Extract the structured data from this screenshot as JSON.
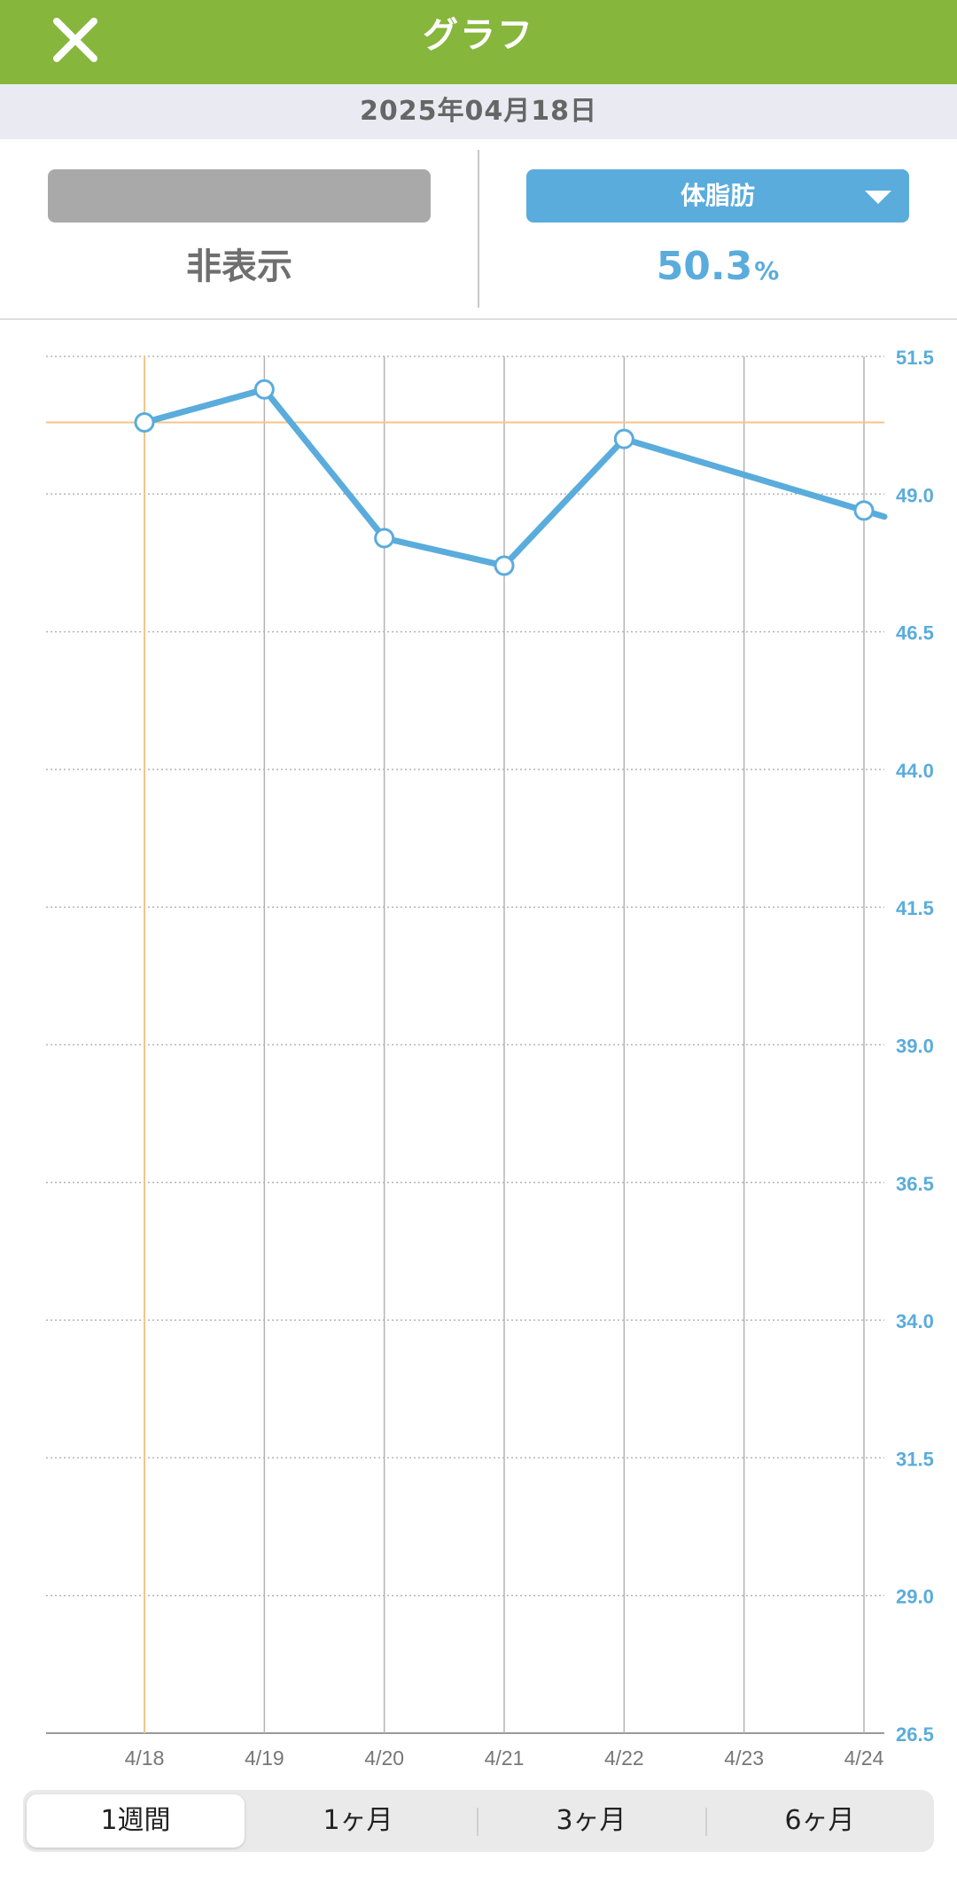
{
  "header": {
    "title": "グラフ",
    "close_icon": "close-icon"
  },
  "date_bar": {
    "text": "2025年04月18日"
  },
  "selectors": {
    "left": {
      "label": "",
      "value": "非表示"
    },
    "right": {
      "label": "体脂肪",
      "value": "50.3",
      "unit": "%",
      "dropdown_icon": "triangle-down-icon"
    }
  },
  "colors": {
    "header_bg": "#86b63c",
    "accent": "#5aacdc",
    "highlight_line": "#f5c48a",
    "muted_selector": "#a9a9a9"
  },
  "chart_data": {
    "type": "line",
    "x": [
      "4/18",
      "4/19",
      "4/20",
      "4/21",
      "4/22",
      "4/23",
      "4/24"
    ],
    "series": [
      {
        "values": [
          50.3,
          50.9,
          48.2,
          47.7,
          50.0,
          null,
          48.7
        ]
      }
    ],
    "y_ticks": [
      "51.5",
      "49.0",
      "46.5",
      "44.0",
      "41.5",
      "39.0",
      "36.5",
      "34.0",
      "31.5",
      "29.0",
      "26.5"
    ],
    "ylim": [
      26.5,
      51.5
    ],
    "y_axis_position": "right",
    "highlight": {
      "x": "4/18",
      "y": 50.3
    },
    "grid": true
  },
  "period_tabs": {
    "selected": "1週間",
    "items": [
      {
        "label": "1週間"
      },
      {
        "label": "1ヶ月"
      },
      {
        "label": "3ヶ月"
      },
      {
        "label": "6ヶ月"
      }
    ]
  }
}
